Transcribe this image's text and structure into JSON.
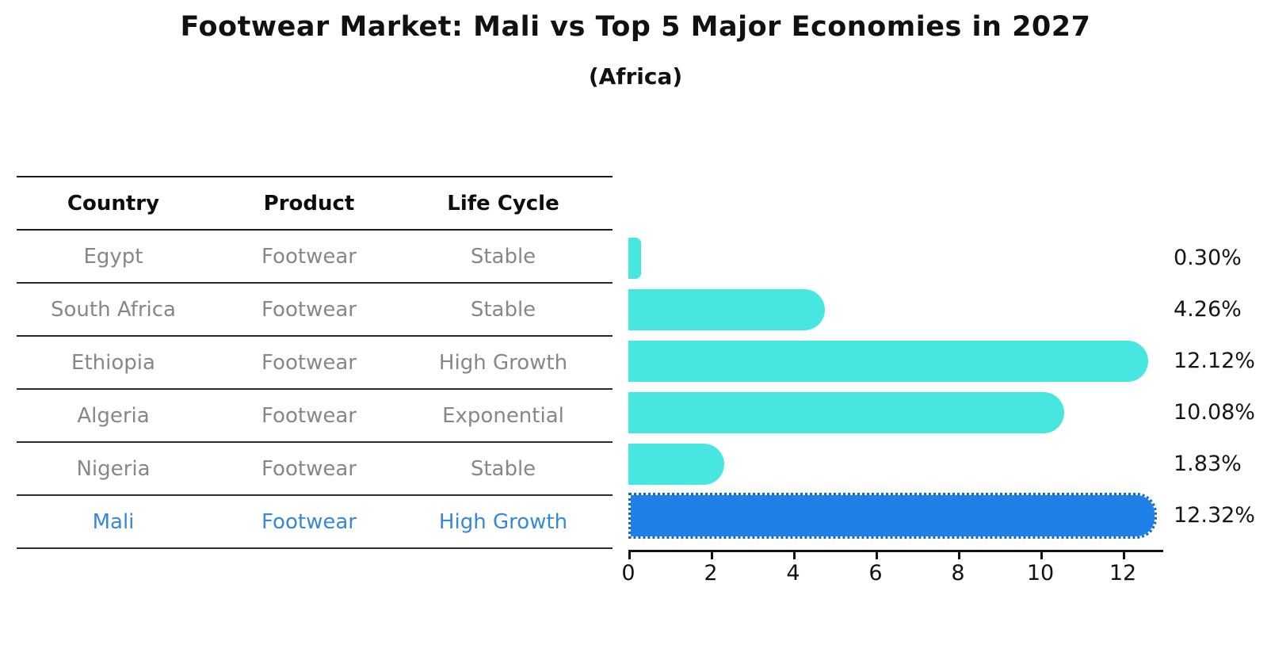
{
  "title": "Footwear Market: Mali vs Top 5 Major Economies in 2027",
  "subtitle": "(Africa)",
  "table": {
    "headers": [
      "Country",
      "Product",
      "Life Cycle"
    ],
    "rows": [
      {
        "country": "Egypt",
        "product": "Footwear",
        "life_cycle": "Stable",
        "highlight": false
      },
      {
        "country": "South Africa",
        "product": "Footwear",
        "life_cycle": "Stable",
        "highlight": false
      },
      {
        "country": "Ethiopia",
        "product": "Footwear",
        "life_cycle": "High Growth",
        "highlight": false
      },
      {
        "country": "Algeria",
        "product": "Footwear",
        "life_cycle": "Exponential",
        "highlight": false
      },
      {
        "country": "Nigeria",
        "product": "Footwear",
        "life_cycle": "Stable",
        "highlight": false
      },
      {
        "country": "Mali",
        "product": "Footwear",
        "life_cycle": "High Growth",
        "highlight": true
      }
    ]
  },
  "chart_data": {
    "type": "bar",
    "orientation": "horizontal",
    "categories": [
      "Egypt",
      "South Africa",
      "Ethiopia",
      "Algeria",
      "Nigeria",
      "Mali"
    ],
    "values": [
      0.3,
      4.26,
      12.12,
      10.08,
      1.83,
      12.32
    ],
    "value_labels": [
      "0.30%",
      "4.26%",
      "12.12%",
      "10.08%",
      "1.83%",
      "12.32%"
    ],
    "highlight_index": 5,
    "xlim": [
      0,
      13
    ],
    "xticks": [
      "0",
      "2",
      "4",
      "6",
      "8",
      "10",
      "12"
    ],
    "xtick_values": [
      0,
      2,
      4,
      6,
      8,
      10,
      12
    ],
    "grid": false,
    "legend": "none",
    "bar_color": "#47e6e0",
    "highlight_bar_color": "#1f80e8",
    "highlight_border_color": "#1565cd",
    "highlight_text_color": "#3787db",
    "axis_color": "#111111",
    "table_text_color": "#878787"
  }
}
